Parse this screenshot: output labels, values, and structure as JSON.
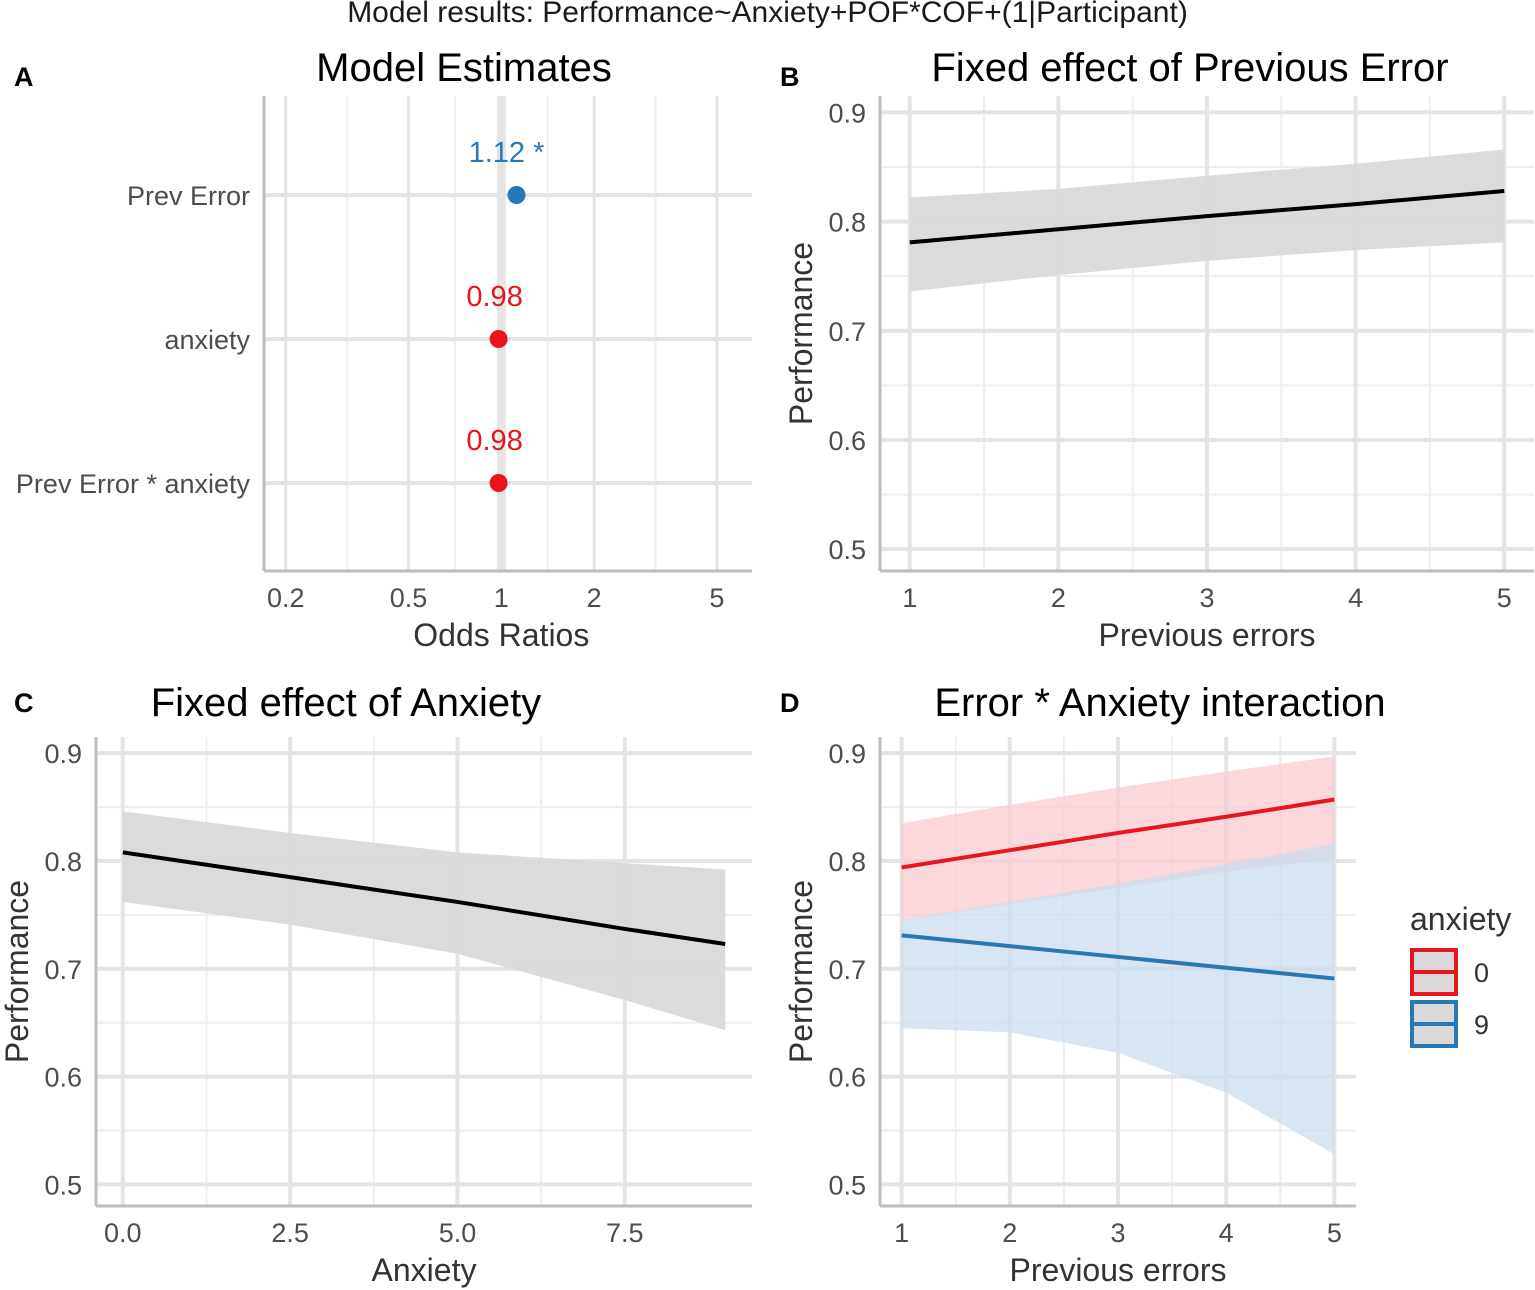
{
  "figure": {
    "suptitle": "Model results: Performance~Anxiety+POF*COF+(1|Participant)"
  },
  "colors": {
    "blue": "#2878b8",
    "red": "#e8151f",
    "black": "#000000",
    "grey_band": "#d9d9d9",
    "red_band": "#f8c9cf",
    "blue_band": "#c9ddef",
    "grid": "#e4e4e4",
    "axis_text": "#4d4d4d"
  },
  "panels": {
    "A": {
      "label": "A",
      "title": "Model Estimates"
    },
    "B": {
      "label": "B",
      "title": "Fixed effect of Previous Error"
    },
    "C": {
      "label": "C",
      "title": "Fixed effect of Anxiety"
    },
    "D": {
      "label": "D",
      "title": "Error * Anxiety interaction"
    }
  },
  "chart_data": [
    {
      "panel": "A",
      "type": "scatter",
      "title": "Model Estimates",
      "xlabel": "Odds Ratios",
      "ylabel": "",
      "x_scale": "log",
      "xlim": [
        0.17,
        6.5
      ],
      "xticks": [
        0.2,
        0.5,
        1,
        2,
        5
      ],
      "xtick_labels": [
        "0.2",
        "0.5",
        "1",
        "2",
        "5"
      ],
      "categories": [
        "Prev Error",
        "anxiety",
        "Prev Error * anxiety"
      ],
      "estimates": [
        1.12,
        0.98,
        0.98
      ],
      "ci_low": [
        1.07,
        0.98,
        0.98
      ],
      "ci_high": [
        1.17,
        0.98,
        0.98
      ],
      "labels": [
        "1.12 *",
        "0.98",
        "0.98"
      ],
      "point_colors": [
        "#2878b8",
        "#e8151f",
        "#e8151f"
      ]
    },
    {
      "panel": "B",
      "type": "line",
      "title": "Fixed effect of Previous Error",
      "xlabel": "Previous errors",
      "ylabel": "Performance",
      "xlim": [
        0.8,
        5.2
      ],
      "ylim": [
        0.48,
        0.915
      ],
      "xticks": [
        1,
        2,
        3,
        4,
        5
      ],
      "xtick_labels": [
        "1",
        "2",
        "3",
        "4",
        "5"
      ],
      "yticks": [
        0.5,
        0.6,
        0.7,
        0.8,
        0.9
      ],
      "ytick_labels": [
        "0.5",
        "0.6",
        "0.7",
        "0.8",
        "0.9"
      ],
      "series": [
        {
          "name": "fit",
          "x": [
            1,
            2,
            3,
            4,
            5
          ],
          "y": [
            0.781,
            0.793,
            0.805,
            0.816,
            0.828
          ],
          "lower": [
            0.736,
            0.751,
            0.764,
            0.774,
            0.781
          ],
          "upper": [
            0.822,
            0.83,
            0.842,
            0.853,
            0.866
          ],
          "color": "#000000",
          "band": "#d9d9d9"
        }
      ]
    },
    {
      "panel": "C",
      "type": "line",
      "title": "Fixed effect of Anxiety",
      "xlabel": "Anxiety",
      "ylabel": "Performance",
      "xlim": [
        -0.4,
        9.4
      ],
      "ylim": [
        0.48,
        0.915
      ],
      "xticks": [
        0,
        2.5,
        5,
        7.5
      ],
      "xtick_labels": [
        "0.0",
        "2.5",
        "5.0",
        "7.5"
      ],
      "yticks": [
        0.5,
        0.6,
        0.7,
        0.8,
        0.9
      ],
      "ytick_labels": [
        "0.5",
        "0.6",
        "0.7",
        "0.8",
        "0.9"
      ],
      "series": [
        {
          "name": "fit",
          "x": [
            0,
            2.5,
            5,
            7.5,
            9
          ],
          "y": [
            0.808,
            0.785,
            0.762,
            0.737,
            0.723
          ],
          "lower": [
            0.762,
            0.741,
            0.714,
            0.671,
            0.643
          ],
          "upper": [
            0.846,
            0.826,
            0.808,
            0.798,
            0.792
          ],
          "color": "#000000",
          "band": "#d9d9d9"
        }
      ]
    },
    {
      "panel": "D",
      "type": "line",
      "title": "Error * Anxiety interaction",
      "xlabel": "Previous errors",
      "ylabel": "Performance",
      "xlim": [
        0.8,
        5.2
      ],
      "ylim": [
        0.48,
        0.915
      ],
      "xticks": [
        1,
        2,
        3,
        4,
        5
      ],
      "xtick_labels": [
        "1",
        "2",
        "3",
        "4",
        "5"
      ],
      "yticks": [
        0.5,
        0.6,
        0.7,
        0.8,
        0.9
      ],
      "ytick_labels": [
        "0.5",
        "0.6",
        "0.7",
        "0.8",
        "0.9"
      ],
      "legend_title": "anxiety",
      "legend_position": "right",
      "series": [
        {
          "name": "0",
          "x": [
            1,
            2,
            3,
            4,
            5
          ],
          "y": [
            0.794,
            0.81,
            0.826,
            0.841,
            0.857
          ],
          "lower": [
            0.745,
            0.76,
            0.775,
            0.79,
            0.802
          ],
          "upper": [
            0.835,
            0.852,
            0.868,
            0.883,
            0.897
          ],
          "color": "#e8151f",
          "band": "#f8c9cf"
        },
        {
          "name": "9",
          "x": [
            1,
            2,
            3,
            4,
            5
          ],
          "y": [
            0.731,
            0.721,
            0.711,
            0.701,
            0.691
          ],
          "lower": [
            0.645,
            0.641,
            0.622,
            0.585,
            0.528
          ],
          "upper": [
            0.745,
            0.762,
            0.779,
            0.797,
            0.816
          ],
          "color": "#2878b8",
          "band": "#c9ddef"
        }
      ]
    }
  ]
}
